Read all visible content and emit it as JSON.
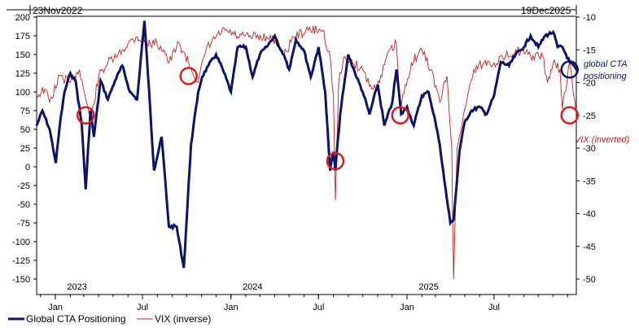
{
  "chart_data": {
    "type": "line",
    "start_label": "23Nov2022",
    "end_label": "19Dec2025",
    "x_range": [
      "2022-11-23",
      "2025-12-19"
    ],
    "x_tick_labels": [
      "Jan",
      "Jul",
      "Jan",
      "Jul",
      "Jan",
      "Jul"
    ],
    "year_labels": [
      "2023",
      "2024",
      "2025"
    ],
    "left_axis": {
      "ylim": [
        -150,
        200
      ],
      "ticks": [
        200,
        175,
        150,
        125,
        100,
        75,
        50,
        25,
        0,
        -25,
        -50,
        -75,
        -100,
        -125,
        -150
      ]
    },
    "right_axis": {
      "ylim": [
        -10,
        -50
      ],
      "ticks": [
        -10,
        -15,
        -20,
        -25,
        -30,
        -35,
        -40,
        -45,
        -50
      ]
    },
    "annotations": {
      "cta": "global CTA positioning",
      "vix": "VIX (inverted)"
    },
    "colors": {
      "cta": "#0d1463",
      "vix": "#c81e1e",
      "circle_red": "#d42020",
      "circle_blue": "#0d1463"
    },
    "series": [
      {
        "name": "Global CTA Positioning",
        "axis": "left",
        "x": [
          "2022-11-23",
          "2022-12-05",
          "2022-12-20",
          "2023-01-02",
          "2023-01-10",
          "2023-01-20",
          "2023-02-01",
          "2023-02-12",
          "2023-02-25",
          "2023-03-05",
          "2023-03-15",
          "2023-03-22",
          "2023-04-05",
          "2023-04-20",
          "2023-05-05",
          "2023-05-20",
          "2023-06-05",
          "2023-06-20",
          "2023-07-05",
          "2023-07-15",
          "2023-07-25",
          "2023-08-10",
          "2023-08-25",
          "2023-09-10",
          "2023-09-25",
          "2023-10-10",
          "2023-10-25",
          "2023-11-02",
          "2023-11-15",
          "2023-12-01",
          "2023-12-15",
          "2024-01-01",
          "2024-01-15",
          "2024-02-01",
          "2024-02-15",
          "2024-03-01",
          "2024-03-15",
          "2024-04-01",
          "2024-04-10",
          "2024-04-20",
          "2024-05-01",
          "2024-05-15",
          "2024-06-01",
          "2024-06-15",
          "2024-07-01",
          "2024-07-15",
          "2024-07-25",
          "2024-08-01",
          "2024-08-05",
          "2024-08-15",
          "2024-09-01",
          "2024-09-15",
          "2024-10-01",
          "2024-10-15",
          "2024-11-01",
          "2024-11-15",
          "2024-12-01",
          "2024-12-10",
          "2024-12-20",
          "2025-01-01",
          "2025-01-15",
          "2025-02-01",
          "2025-02-15",
          "2025-03-01",
          "2025-03-10",
          "2025-03-20",
          "2025-04-01",
          "2025-04-08",
          "2025-04-20",
          "2025-05-01",
          "2025-05-15",
          "2025-06-01",
          "2025-06-15",
          "2025-07-01",
          "2025-07-15",
          "2025-08-01",
          "2025-08-15",
          "2025-09-01",
          "2025-09-15",
          "2025-10-01",
          "2025-10-15",
          "2025-11-01",
          "2025-11-10",
          "2025-11-20",
          "2025-12-05",
          "2025-12-19"
        ],
        "values": [
          55,
          75,
          50,
          5,
          55,
          100,
          125,
          115,
          55,
          -30,
          75,
          40,
          115,
          90,
          115,
          135,
          100,
          90,
          195,
          100,
          -5,
          40,
          -80,
          -80,
          -135,
          30,
          100,
          120,
          135,
          150,
          130,
          100,
          160,
          160,
          120,
          150,
          160,
          175,
          160,
          150,
          130,
          170,
          155,
          120,
          160,
          100,
          -5,
          20,
          -5,
          70,
          150,
          125,
          100,
          70,
          110,
          55,
          85,
          130,
          70,
          80,
          55,
          95,
          100,
          60,
          30,
          -20,
          -75,
          -70,
          20,
          60,
          75,
          80,
          70,
          95,
          140,
          135,
          150,
          160,
          175,
          160,
          175,
          180,
          160,
          160,
          140,
          130
        ]
      },
      {
        "name": "VIX (inverse)",
        "axis": "right",
        "x": [
          "2022-11-23",
          "2022-12-10",
          "2022-12-20",
          "2023-01-10",
          "2023-02-01",
          "2023-02-20",
          "2023-03-10",
          "2023-03-15",
          "2023-04-01",
          "2023-04-20",
          "2023-05-10",
          "2023-06-01",
          "2023-06-20",
          "2023-07-10",
          "2023-07-31",
          "2023-08-15",
          "2023-08-25",
          "2023-09-15",
          "2023-10-05",
          "2023-10-25",
          "2023-11-10",
          "2023-12-01",
          "2023-12-20",
          "2024-01-15",
          "2024-02-15",
          "2024-03-15",
          "2024-04-10",
          "2024-04-20",
          "2024-05-10",
          "2024-06-10",
          "2024-07-10",
          "2024-07-25",
          "2024-08-01",
          "2024-08-05",
          "2024-08-12",
          "2024-08-25",
          "2024-09-10",
          "2024-10-01",
          "2024-10-20",
          "2024-11-05",
          "2024-11-20",
          "2024-12-10",
          "2024-12-18",
          "2025-01-10",
          "2025-02-01",
          "2025-02-20",
          "2025-03-10",
          "2025-03-25",
          "2025-04-04",
          "2025-04-08",
          "2025-04-15",
          "2025-05-01",
          "2025-05-20",
          "2025-06-10",
          "2025-07-01",
          "2025-07-25",
          "2025-08-15",
          "2025-09-15",
          "2025-10-10",
          "2025-10-20",
          "2025-11-01",
          "2025-11-15",
          "2025-11-20",
          "2025-12-05",
          "2025-12-19"
        ],
        "values": [
          -22,
          -21,
          -23,
          -19,
          -20,
          -18,
          -24,
          -26,
          -19,
          -17,
          -16,
          -14,
          -13,
          -14,
          -14,
          -15,
          -17,
          -14,
          -17,
          -20,
          -15,
          -13,
          -12,
          -13,
          -13,
          -13,
          -14,
          -16,
          -13,
          -12,
          -12,
          -16,
          -22,
          -38,
          -20,
          -16,
          -17,
          -18,
          -21,
          -20,
          -16,
          -14,
          -24,
          -17,
          -15,
          -18,
          -23,
          -19,
          -30,
          -50,
          -30,
          -24,
          -18,
          -17,
          -17,
          -16,
          -15,
          -16,
          -16,
          -20,
          -17,
          -18,
          -24,
          -17,
          -25
        ]
      }
    ]
  },
  "legend": {
    "items": [
      {
        "label": "Global CTA Positioning"
      },
      {
        "label": "VIX (inverse)"
      }
    ]
  }
}
